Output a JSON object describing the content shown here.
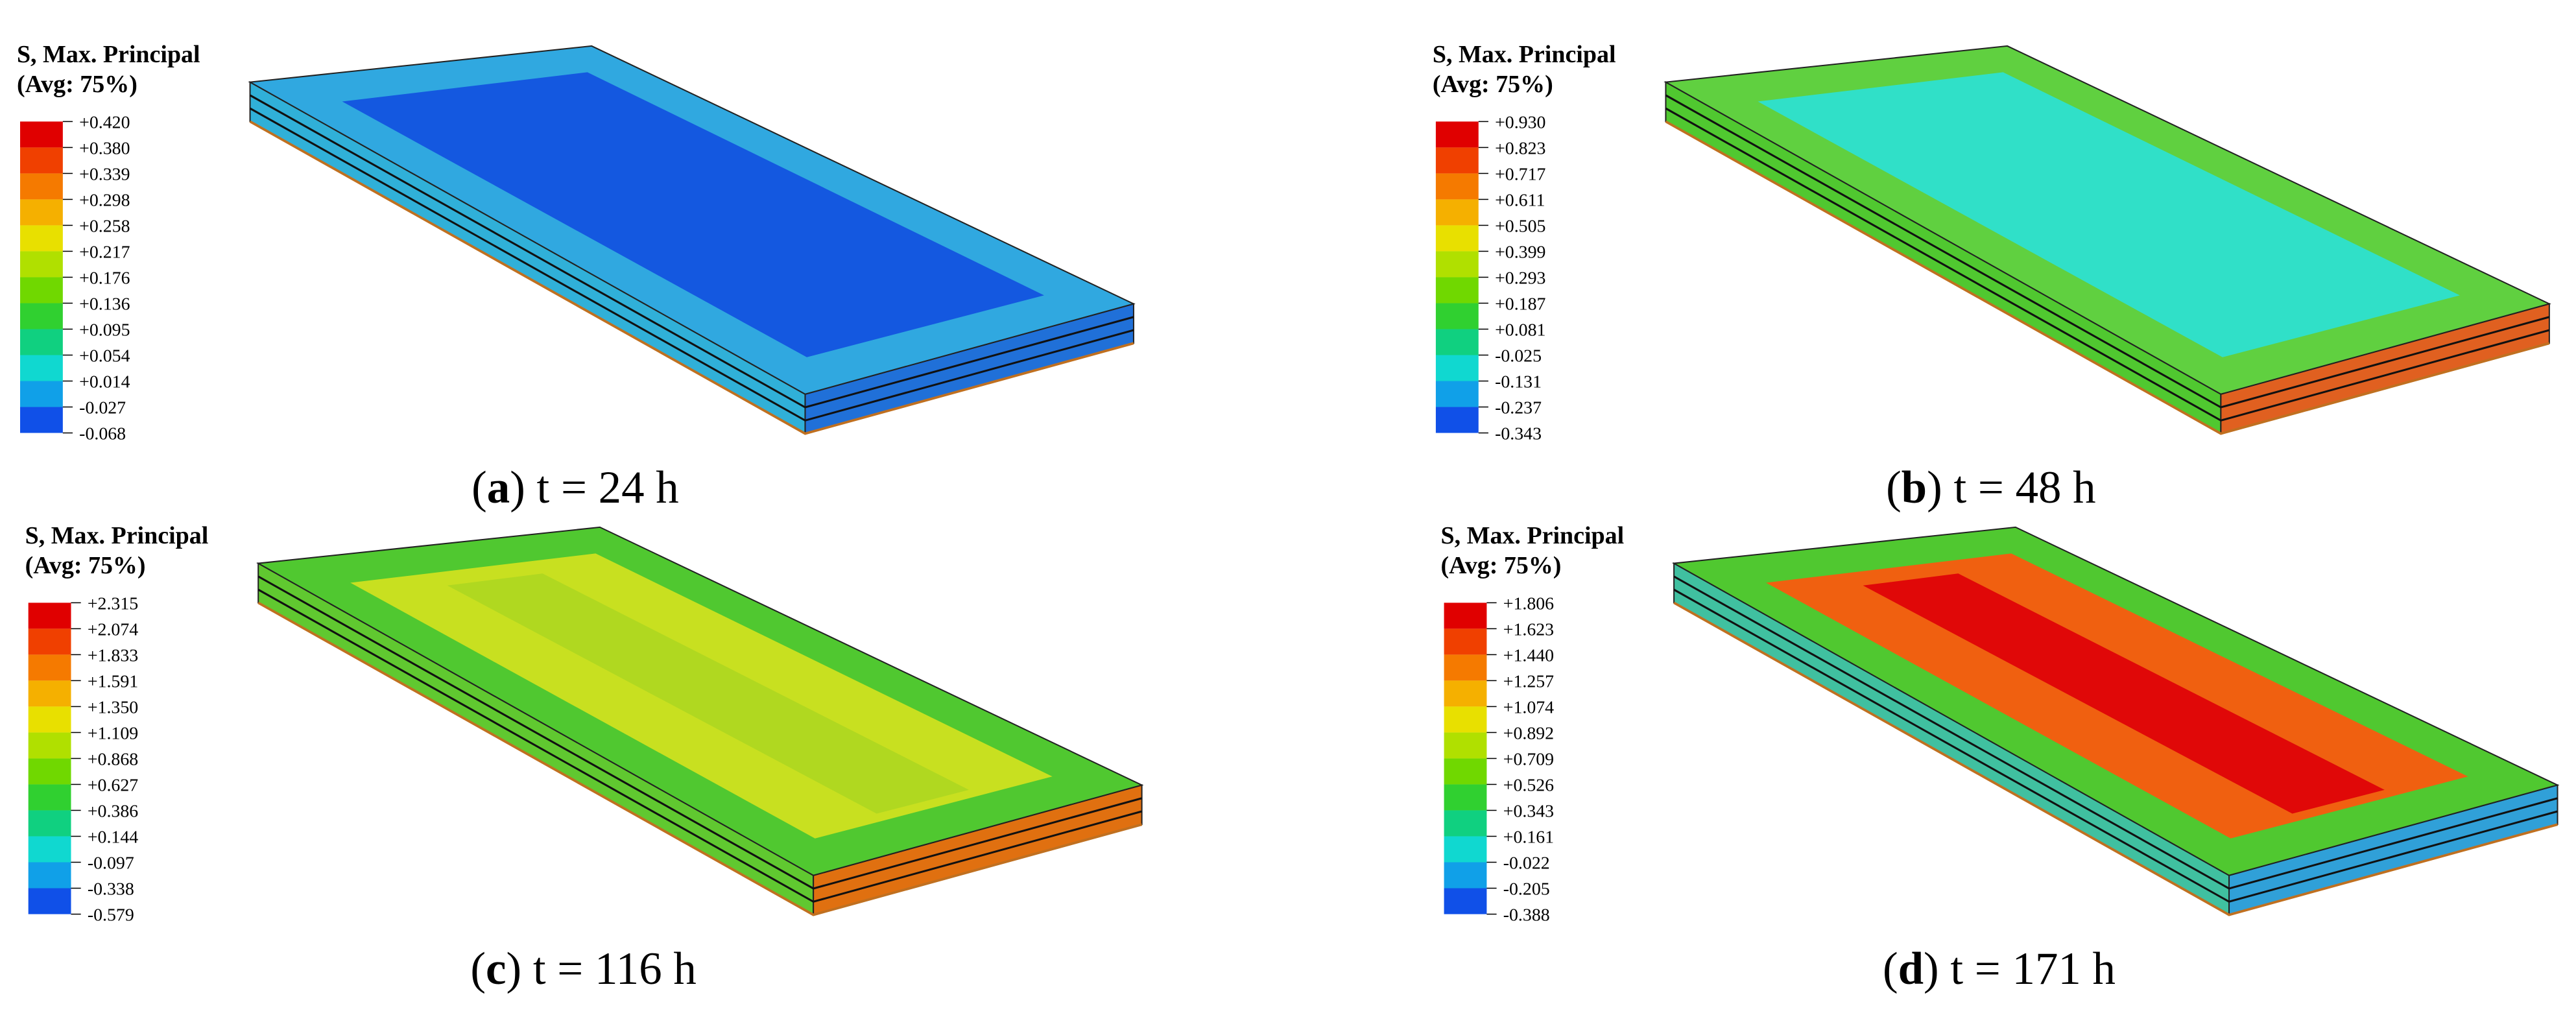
{
  "panels": [
    {
      "legend_title": "S, Max. Principal",
      "legend_subtitle": "(Avg: 75%)",
      "legend_labels": [
        "+0.420",
        "+0.380",
        "+0.339",
        "+0.298",
        "+0.258",
        "+0.217",
        "+0.176",
        "+0.136",
        "+0.095",
        "+0.054",
        "+0.014",
        "-0.027",
        "-0.068"
      ],
      "caption": [
        "(",
        "a",
        ") t = 24 h"
      ]
    },
    {
      "legend_title": "S, Max. Principal",
      "legend_subtitle": "(Avg: 75%)",
      "legend_labels": [
        "+0.930",
        "+0.823",
        "+0.717",
        "+0.611",
        "+0.505",
        "+0.399",
        "+0.293",
        "+0.187",
        "+0.081",
        "-0.025",
        "-0.131",
        "-0.237",
        "-0.343"
      ],
      "caption": [
        "(",
        "b",
        ") t = 48 h"
      ]
    },
    {
      "legend_title": "S, Max. Principal",
      "legend_subtitle": "(Avg: 75%)",
      "legend_labels": [
        "+2.315",
        "+2.074",
        "+1.833",
        "+1.591",
        "+1.350",
        "+1.109",
        "+0.868",
        "+0.627",
        "+0.386",
        "+0.144",
        "-0.097",
        "-0.338",
        "-0.579"
      ],
      "caption": [
        "(",
        "c",
        ") t = 116 h"
      ]
    },
    {
      "legend_title": "S, Max. Principal",
      "legend_subtitle": "(Avg: 75%)",
      "legend_labels": [
        "+1.806",
        "+1.623",
        "+1.440",
        "+1.257",
        "+1.074",
        "+0.892",
        "+0.709",
        "+0.526",
        "+0.343",
        "+0.161",
        "-0.022",
        "-0.205",
        "-0.388"
      ],
      "caption": [
        "(",
        "d",
        ") t = 171 h"
      ]
    }
  ]
}
